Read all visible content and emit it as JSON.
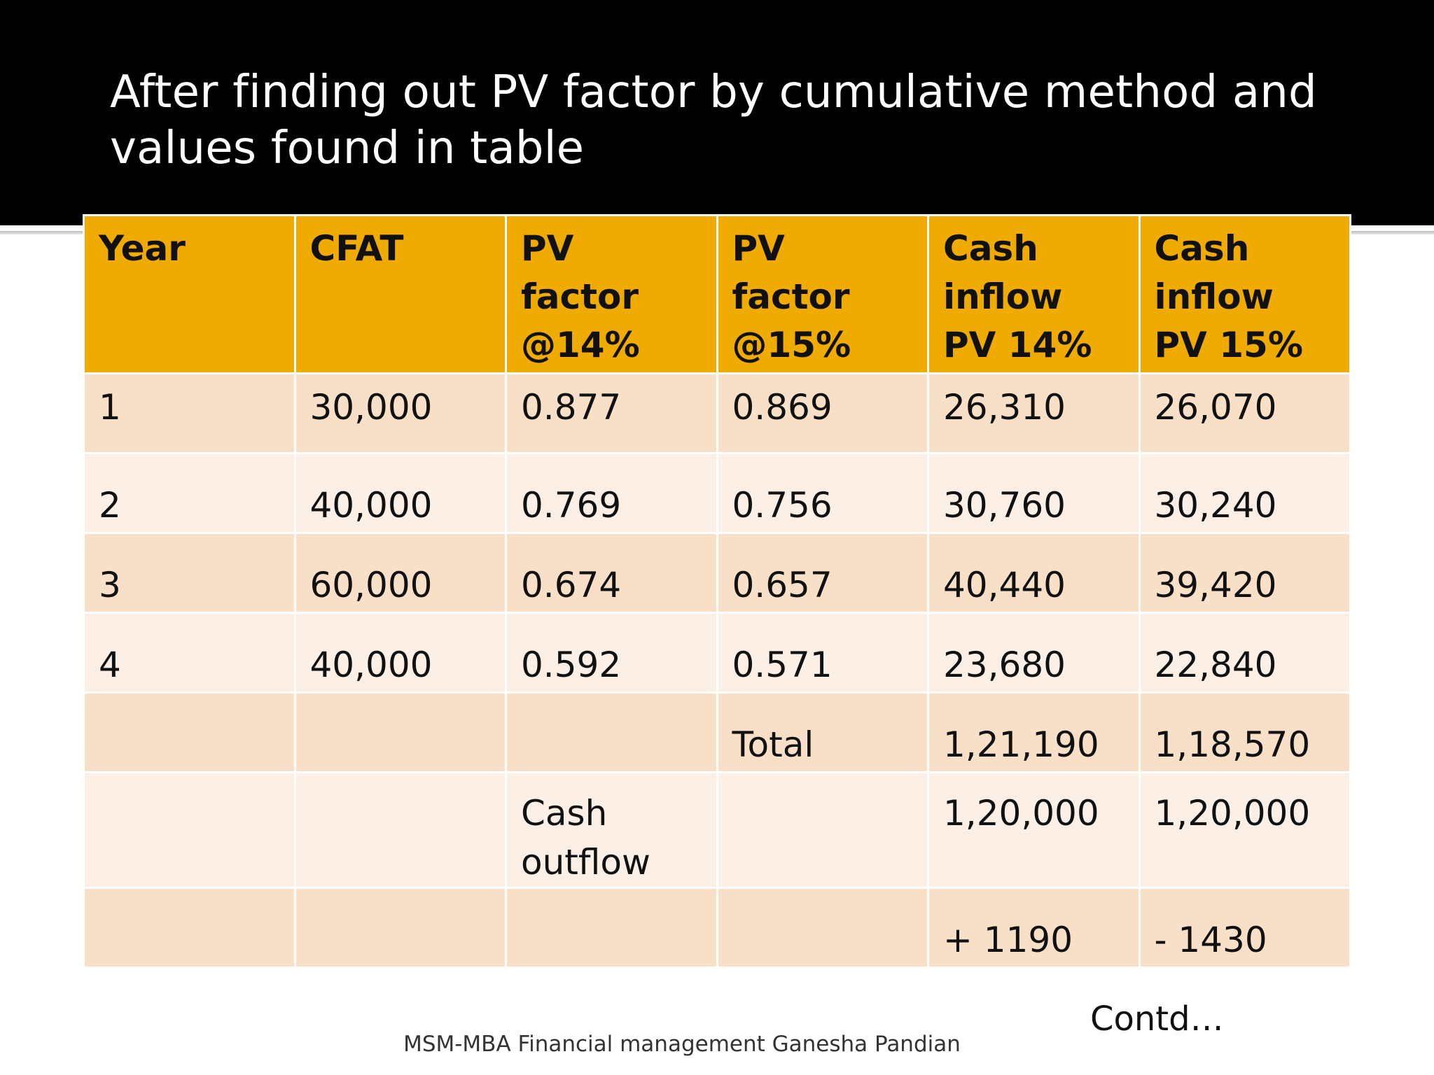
{
  "slide": {
    "title": "After  finding out PV factor by cumulative method and values found in table",
    "contd": "Contd…",
    "footer": "MSM-MBA Financial management Ganesha Pandian"
  },
  "table": {
    "headers": [
      "Year",
      "CFAT",
      "PV  factor @14%",
      "PV factor @15%",
      "Cash inflow PV 14%",
      "Cash inflow PV 15%"
    ],
    "rows": [
      [
        "1",
        "30,000",
        "0.877",
        "0.869",
        "26,310",
        "26,070"
      ],
      [
        "2",
        "40,000",
        "0.769",
        "0.756",
        "30,760",
        "30,240"
      ],
      [
        "3",
        "60,000",
        "0.674",
        "0.657",
        "40,440",
        "39,420"
      ],
      [
        "4",
        "40,000",
        "0.592",
        "0.571",
        "23,680",
        "22,840"
      ],
      [
        "",
        "",
        "",
        "Total",
        "1,21,190",
        "1,18,570"
      ],
      [
        "",
        "",
        "Cash outflow",
        "",
        "1,20,000",
        "1,20,000"
      ],
      [
        "",
        "",
        "",
        "",
        "+ 1190",
        "- 1430"
      ]
    ]
  },
  "colors": {
    "title_band": "#000000",
    "header_fill": "#f0ab00",
    "row_fill_odd": "#f8e0c8",
    "row_fill_even": "#fbefe6"
  }
}
